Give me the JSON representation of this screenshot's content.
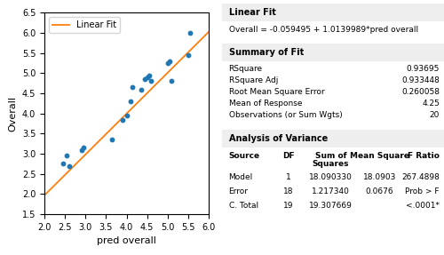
{
  "chart_data": {
    "type": "scatter",
    "xlabel": "pred overall",
    "ylabel": "Overall",
    "xlim": [
      2.0,
      6.0
    ],
    "ylim": [
      1.5,
      6.5
    ],
    "xticks": [
      2.0,
      2.5,
      3.0,
      3.5,
      4.0,
      4.5,
      5.0,
      5.5,
      6.0
    ],
    "yticks": [
      1.5,
      2.0,
      2.5,
      3.0,
      3.5,
      4.0,
      4.5,
      5.0,
      5.5,
      6.0,
      6.5
    ],
    "legend": "upper left",
    "series": [
      {
        "type": "scatter",
        "marker": "o",
        "x": [
          2.45,
          2.55,
          2.6,
          2.9,
          2.95,
          3.65,
          3.9,
          4.0,
          4.1,
          4.15,
          4.35,
          4.45,
          4.5,
          4.55,
          4.6,
          5.0,
          5.05,
          5.1,
          5.5,
          5.55
        ],
        "values": [
          2.75,
          2.95,
          2.7,
          3.1,
          3.15,
          3.35,
          3.85,
          3.95,
          4.3,
          4.65,
          4.6,
          4.85,
          4.9,
          4.95,
          4.8,
          5.25,
          5.3,
          4.8,
          5.45,
          6.0
        ]
      },
      {
        "type": "line",
        "name": "Linear Fit",
        "line_style": "solid",
        "x": [
          2.0,
          6.0
        ],
        "values": [
          1.9685028,
          6.0244984
        ]
      }
    ],
    "report": [
      {
        "title": "Linear Fit",
        "text": "Overall = -0.059495 + 1.0139989*pred overall"
      },
      {
        "title": "Summary of Fit",
        "rows": [
          [
            "RSquare",
            "0.93695"
          ],
          [
            "RSquare Adj",
            "0.933448"
          ],
          [
            "Root Mean Square Error",
            "0.260058"
          ],
          [
            "Mean of Response",
            "4.25"
          ],
          [
            "Observations (or Sum Wgts)",
            "20"
          ]
        ]
      },
      {
        "title": "Analysis of Variance",
        "header": [
          "Source",
          "DF",
          "Sum of\nSquares",
          "Mean Square",
          "F Ratio"
        ],
        "rows": [
          [
            "Model",
            "1",
            "18.090330",
            "18.0903",
            "267.4898"
          ],
          [
            "Error",
            "18",
            "1.217340",
            "0.0676",
            "Prob > F"
          ],
          [
            "C. Total",
            "19",
            "19.307669",
            null,
            "<.0001*"
          ]
        ]
      }
    ]
  }
}
